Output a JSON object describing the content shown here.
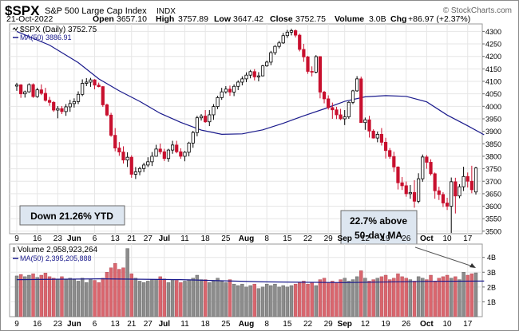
{
  "header": {
    "symbol": "$SPX",
    "name": "S&P 500 Large Cap Index",
    "exchange": "INDX",
    "date": "21-Oct-2022",
    "open_label": "Open",
    "open": "3657.10",
    "high_label": "High",
    "high": "3757.89",
    "low_label": "Low",
    "low": "3647.42",
    "close_label": "Close",
    "close": "3752.75",
    "volume_label": "Volume",
    "volume": "3.0B",
    "chg_label": "Chg",
    "chg": "+86.97 (+2.37%)",
    "watermark": "© StockCharts.com"
  },
  "price_legend": {
    "series": "$SPX (Daily) 3752.75",
    "ma": "MA(50) 3886.91"
  },
  "volume_legend": {
    "series": "Volume 2,958,923,264",
    "ma": "MA(50) 2,395,205,888"
  },
  "annotations": {
    "ytd": "Down 21.26% YTD",
    "callout_line1": "22.7% above",
    "callout_line2": "50-day MA"
  },
  "colors": {
    "up": "#ffffff",
    "up_edge": "#000000",
    "down": "#c8102e",
    "ma": "#1a1a8c",
    "vol_up": "#8c8c8c",
    "vol_down": "#d9666e",
    "grid": "#e6e6e6",
    "callout_bg": "#dde6f0"
  },
  "chart_data": [
    {
      "type": "candlestick",
      "title": "$SPX (Daily)",
      "ylim": [
        3490,
        4330
      ],
      "y_ticks": [
        3500,
        3550,
        3600,
        3650,
        3700,
        3750,
        3800,
        3850,
        3900,
        3950,
        4000,
        4050,
        4100,
        4150,
        4200,
        4250,
        4300
      ],
      "x_tick_labels": [
        {
          "label": "9",
          "bar": 0
        },
        {
          "label": "16",
          "bar": 5
        },
        {
          "label": "23",
          "bar": 10
        },
        {
          "label": "Jun",
          "bar": 14
        },
        {
          "label": "6",
          "bar": 19
        },
        {
          "label": "13",
          "bar": 24
        },
        {
          "label": "21",
          "bar": 28
        },
        {
          "label": "27",
          "bar": 32
        },
        {
          "label": "Jul",
          "bar": 36
        },
        {
          "label": "11",
          "bar": 41
        },
        {
          "label": "18",
          "bar": 46
        },
        {
          "label": "25",
          "bar": 51
        },
        {
          "label": "Aug",
          "bar": 56
        },
        {
          "label": "8",
          "bar": 61
        },
        {
          "label": "15",
          "bar": 66
        },
        {
          "label": "22",
          "bar": 71
        },
        {
          "label": "29",
          "bar": 76
        },
        {
          "label": "Sep",
          "bar": 80
        },
        {
          "label": "12",
          "bar": 85
        },
        {
          "label": "19",
          "bar": 90
        },
        {
          "label": "26",
          "bar": 95
        },
        {
          "label": "Oct",
          "bar": 100
        },
        {
          "label": "10",
          "bar": 105
        },
        {
          "label": "17",
          "bar": 110
        }
      ],
      "ohlc": [
        [
          4081,
          4094,
          4062,
          4086
        ],
        [
          4086,
          4089,
          4034,
          4050
        ],
        [
          4050,
          4063,
          4035,
          4058
        ],
        [
          4058,
          4092,
          4055,
          4087
        ],
        [
          4087,
          4092,
          4034,
          4039
        ],
        [
          4039,
          4074,
          4034,
          4066
        ],
        [
          4066,
          4088,
          4045,
          4052
        ],
        [
          4052,
          4074,
          4019,
          4024
        ],
        [
          4024,
          4038,
          4002,
          4016
        ],
        [
          4016,
          4021,
          3978,
          3985
        ],
        [
          3985,
          4001,
          3952,
          3991
        ],
        [
          3991,
          4001,
          3969,
          3979
        ],
        [
          3979,
          4009,
          3962,
          3998
        ],
        [
          3998,
          4026,
          3978,
          4011
        ],
        [
          4011,
          4032,
          3995,
          4019
        ],
        [
          4019,
          4060,
          4009,
          4048
        ],
        [
          4048,
          4108,
          4041,
          4092
        ],
        [
          4092,
          4113,
          4081,
          4097
        ],
        [
          4097,
          4114,
          4078,
          4106
        ],
        [
          4106,
          4109,
          4068,
          4085
        ],
        [
          4085,
          4095,
          4076,
          4079
        ],
        [
          4079,
          4081,
          3998,
          4006
        ],
        [
          4006,
          4011,
          3960,
          3965
        ],
        [
          3965,
          3974,
          3878,
          3884
        ],
        [
          3884,
          3913,
          3820,
          3833
        ],
        [
          3833,
          3857,
          3802,
          3817
        ],
        [
          3817,
          3840,
          3771,
          3785
        ],
        [
          3785,
          3816,
          3757,
          3796
        ],
        [
          3796,
          3804,
          3714,
          3728
        ],
        [
          3728,
          3757,
          3709,
          3738
        ],
        [
          3738,
          3758,
          3724,
          3751
        ],
        [
          3751,
          3774,
          3737,
          3765
        ],
        [
          3765,
          3796,
          3757,
          3778
        ],
        [
          3778,
          3817,
          3761,
          3800
        ],
        [
          3800,
          3846,
          3799,
          3829
        ],
        [
          3829,
          3851,
          3808,
          3818
        ],
        [
          3818,
          3830,
          3781,
          3791
        ],
        [
          3791,
          3830,
          3778,
          3825
        ],
        [
          3825,
          3862,
          3810,
          3845
        ],
        [
          3845,
          3862,
          3812,
          3818
        ],
        [
          3818,
          3832,
          3790,
          3800
        ],
        [
          3800,
          3821,
          3780,
          3816
        ],
        [
          3816,
          3858,
          3800,
          3853
        ],
        [
          3853,
          3902,
          3834,
          3895
        ],
        [
          3895,
          3962,
          3880,
          3954
        ],
        [
          3954,
          3969,
          3943,
          3961
        ],
        [
          3961,
          3985,
          3934,
          3938
        ],
        [
          3938,
          3985,
          3921,
          3966
        ],
        [
          3966,
          4009,
          3946,
          3999
        ],
        [
          3999,
          4042,
          3989,
          4035
        ],
        [
          4035,
          4074,
          4026,
          4058
        ],
        [
          4058,
          4081,
          4051,
          4069
        ],
        [
          4069,
          4083,
          4042,
          4057
        ],
        [
          4057,
          4088,
          4041,
          4080
        ],
        [
          4080,
          4104,
          4065,
          4097
        ],
        [
          4097,
          4120,
          4084,
          4110
        ],
        [
          4110,
          4136,
          4097,
          4125
        ],
        [
          4125,
          4146,
          4112,
          4139
        ],
        [
          4139,
          4149,
          4104,
          4118
        ],
        [
          4118,
          4137,
          4100,
          4122
        ],
        [
          4122,
          4166,
          4120,
          4162
        ],
        [
          4162,
          4183,
          4158,
          4177
        ],
        [
          4177,
          4222,
          4165,
          4215
        ],
        [
          4215,
          4245,
          4206,
          4240
        ],
        [
          4240,
          4262,
          4232,
          4254
        ],
        [
          4254,
          4294,
          4250,
          4283
        ],
        [
          4283,
          4306,
          4274,
          4297
        ],
        [
          4297,
          4311,
          4284,
          4303
        ],
        [
          4303,
          4308,
          4276,
          4285
        ],
        [
          4285,
          4291,
          4220,
          4228
        ],
        [
          4228,
          4250,
          4178,
          4198
        ],
        [
          4198,
          4202,
          4130,
          4140
        ],
        [
          4140,
          4160,
          4120,
          4137
        ],
        [
          4137,
          4205,
          4132,
          4199
        ],
        [
          4199,
          4201,
          4032,
          4057
        ],
        [
          4057,
          4062,
          4012,
          4030
        ],
        [
          4030,
          4044,
          3987,
          3995
        ],
        [
          3995,
          4015,
          3950,
          3986
        ],
        [
          3986,
          3998,
          3949,
          3966
        ],
        [
          3966,
          3990,
          3945,
          3950
        ],
        [
          3950,
          3985,
          3925,
          3958
        ],
        [
          3958,
          4020,
          3950,
          4016
        ],
        [
          4016,
          4066,
          4009,
          4062
        ],
        [
          4062,
          4121,
          4058,
          4110
        ],
        [
          4110,
          4119,
          3935,
          3935
        ],
        [
          3935,
          3955,
          3906,
          3946
        ],
        [
          3946,
          3962,
          3875,
          3901
        ],
        [
          3901,
          3908,
          3871,
          3873
        ],
        [
          3873,
          3899,
          3856,
          3888
        ],
        [
          3888,
          3913,
          3843,
          3856
        ],
        [
          3856,
          3874,
          3791,
          3823
        ],
        [
          3823,
          3833,
          3790,
          3799
        ],
        [
          3799,
          3818,
          3737,
          3757
        ],
        [
          3757,
          3760,
          3667,
          3694
        ],
        [
          3694,
          3717,
          3665,
          3682
        ],
        [
          3682,
          3699,
          3638,
          3650
        ],
        [
          3650,
          3685,
          3630,
          3655
        ],
        [
          3655,
          3704,
          3594,
          3620
        ],
        [
          3620,
          3732,
          3612,
          3710
        ],
        [
          3710,
          3807,
          3698,
          3797
        ],
        [
          3797,
          3805,
          3750,
          3776
        ],
        [
          3776,
          3788,
          3723,
          3730
        ],
        [
          3730,
          3735,
          3630,
          3662
        ],
        [
          3662,
          3678,
          3625,
          3647
        ],
        [
          3647,
          3656,
          3597,
          3613
        ],
        [
          3613,
          3634,
          3585,
          3600
        ],
        [
          3600,
          3715,
          3493,
          3698
        ],
        [
          3698,
          3714,
          3571,
          3641
        ],
        [
          3641,
          3688,
          3632,
          3678
        ],
        [
          3678,
          3758,
          3661,
          3719
        ],
        [
          3719,
          3735,
          3675,
          3700
        ],
        [
          3700,
          3762,
          3652,
          3666
        ],
        [
          3657,
          3758,
          3647,
          3753
        ]
      ],
      "ma50": [
        [
          0,
          4300
        ],
        [
          8,
          4245
        ],
        [
          15,
          4175
        ],
        [
          20,
          4110
        ],
        [
          25,
          4062
        ],
        [
          30,
          4020
        ],
        [
          35,
          3972
        ],
        [
          40,
          3936
        ],
        [
          45,
          3905
        ],
        [
          50,
          3888
        ],
        [
          55,
          3890
        ],
        [
          60,
          3906
        ],
        [
          65,
          3932
        ],
        [
          70,
          3962
        ],
        [
          75,
          3990
        ],
        [
          80,
          4020
        ],
        [
          85,
          4038
        ],
        [
          90,
          4043
        ],
        [
          95,
          4040
        ],
        [
          100,
          4018
        ],
        [
          105,
          3965
        ],
        [
          110,
          3922
        ],
        [
          114,
          3886
        ]
      ]
    },
    {
      "type": "bar",
      "title": "Volume",
      "ylim": [
        0,
        4.9
      ],
      "y_ticks": [
        1,
        2,
        3,
        4
      ],
      "y_tick_labels": [
        "1B",
        "2B",
        "3B",
        "4B"
      ],
      "values": [
        2.75,
        2.85,
        2.7,
        2.8,
        2.9,
        2.65,
        2.8,
        2.95,
        2.7,
        2.6,
        2.55,
        2.7,
        2.5,
        2.6,
        2.5,
        2.4,
        2.6,
        2.3,
        2.5,
        2.45,
        2.3,
        2.6,
        3.0,
        3.3,
        3.6,
        3.2,
        3.3,
        4.6,
        2.9,
        2.6,
        2.4,
        2.3,
        2.4,
        2.5,
        2.5,
        2.7,
        2.55,
        2.3,
        2.5,
        2.45,
        2.3,
        2.4,
        2.5,
        2.6,
        2.8,
        2.5,
        2.5,
        2.3,
        2.4,
        2.6,
        2.4,
        2.3,
        2.5,
        2.2,
        2.1,
        2.2,
        2.0,
        2.1,
        2.2,
        1.9,
        2.0,
        2.2,
        2.1,
        2.2,
        2.0,
        2.1,
        2.0,
        2.1,
        2.2,
        2.3,
        2.4,
        2.2,
        2.3,
        2.1,
        2.5,
        2.6,
        2.3,
        2.4,
        2.3,
        2.5,
        2.6,
        2.4,
        2.5,
        2.7,
        3.1,
        2.6,
        2.4,
        2.5,
        2.6,
        2.7,
        2.8,
        2.5,
        2.6,
        2.9,
        2.7,
        2.6,
        2.5,
        2.4,
        2.7,
        2.6,
        2.5,
        2.8,
        2.4,
        2.6,
        2.7,
        2.8,
        2.6,
        2.7,
        2.5,
        3.0,
        2.8,
        2.9,
        2.96
      ],
      "ma50": [
        [
          0,
          2.5
        ],
        [
          20,
          2.55
        ],
        [
          40,
          2.5
        ],
        [
          60,
          2.35
        ],
        [
          80,
          2.3
        ],
        [
          100,
          2.38
        ],
        [
          114,
          2.4
        ]
      ]
    }
  ]
}
